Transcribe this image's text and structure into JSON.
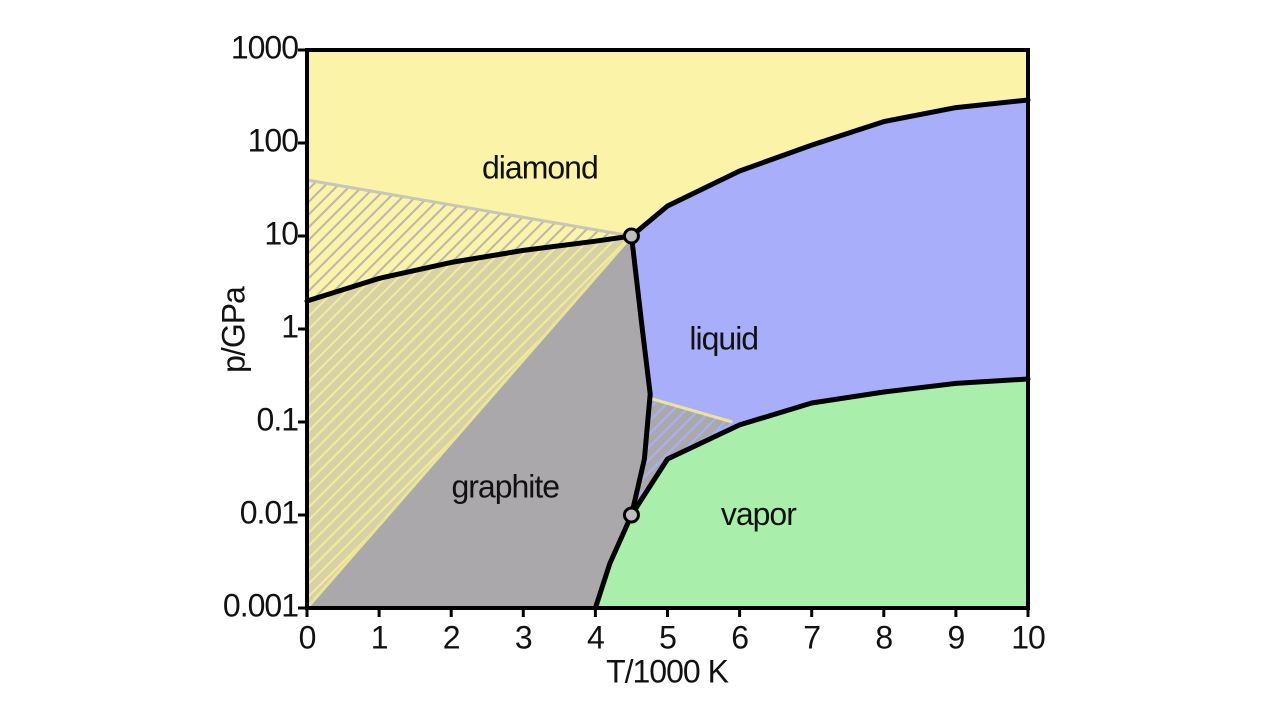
{
  "chart_data": {
    "type": "phase",
    "xlabel": "T/1000 K",
    "ylabel": "p/GPa",
    "xlim": [
      0,
      10
    ],
    "xticks": [
      0,
      1,
      2,
      3,
      4,
      5,
      6,
      7,
      8,
      9,
      10
    ],
    "ylim": [
      0.001,
      1000
    ],
    "yticks": [
      0.001,
      0.01,
      0.1,
      1,
      10,
      100,
      1000
    ],
    "log_y": true,
    "regions": [
      {
        "label": "diamond",
        "T": 3.23,
        "p": 51,
        "color": "#fbf3a8"
      },
      {
        "label": "liquid",
        "T": 5.78,
        "p": 0.74,
        "color": "#a9aefb"
      },
      {
        "label": "graphite",
        "T": 2.75,
        "p": 0.019,
        "color": "#aba8ab"
      },
      {
        "label": "vapor",
        "T": 6.26,
        "p": 0.0096,
        "color": "#a9eeaa"
      }
    ],
    "boundaries": [
      {
        "x": [
          0,
          1,
          2,
          3,
          4,
          4.5
        ],
        "p": [
          2,
          3.5,
          5.2,
          7,
          8.8,
          10
        ]
      },
      {
        "x": [
          4.5,
          5,
          6,
          7,
          8,
          9,
          10
        ],
        "p": [
          10,
          21,
          50,
          95,
          170,
          240,
          290
        ]
      },
      {
        "x": [
          4.5,
          4.65,
          4.76,
          4.68,
          4.5
        ],
        "p": [
          10,
          1,
          0.2,
          0.04,
          0.01
        ]
      },
      {
        "x": [
          4.5,
          4.2,
          4
        ],
        "p": [
          0.01,
          0.003,
          0.001
        ]
      },
      {
        "x": [
          4.5,
          5,
          6,
          7,
          8,
          9,
          10
        ],
        "p": [
          0.01,
          0.04,
          0.093,
          0.16,
          0.21,
          0.26,
          0.29
        ]
      }
    ],
    "metastable": [
      {
        "x": [
          0,
          4.5
        ],
        "p": [
          40,
          10
        ]
      },
      {
        "x": [
          0,
          4.5
        ],
        "p": [
          0.001,
          10
        ]
      },
      {
        "x": [
          4.76,
          5.9
        ],
        "p": [
          0.18,
          0.1
        ]
      }
    ],
    "triple_points": [
      {
        "T": 4.5,
        "p": 10
      },
      {
        "T": 4.5,
        "p": 0.01
      }
    ]
  }
}
